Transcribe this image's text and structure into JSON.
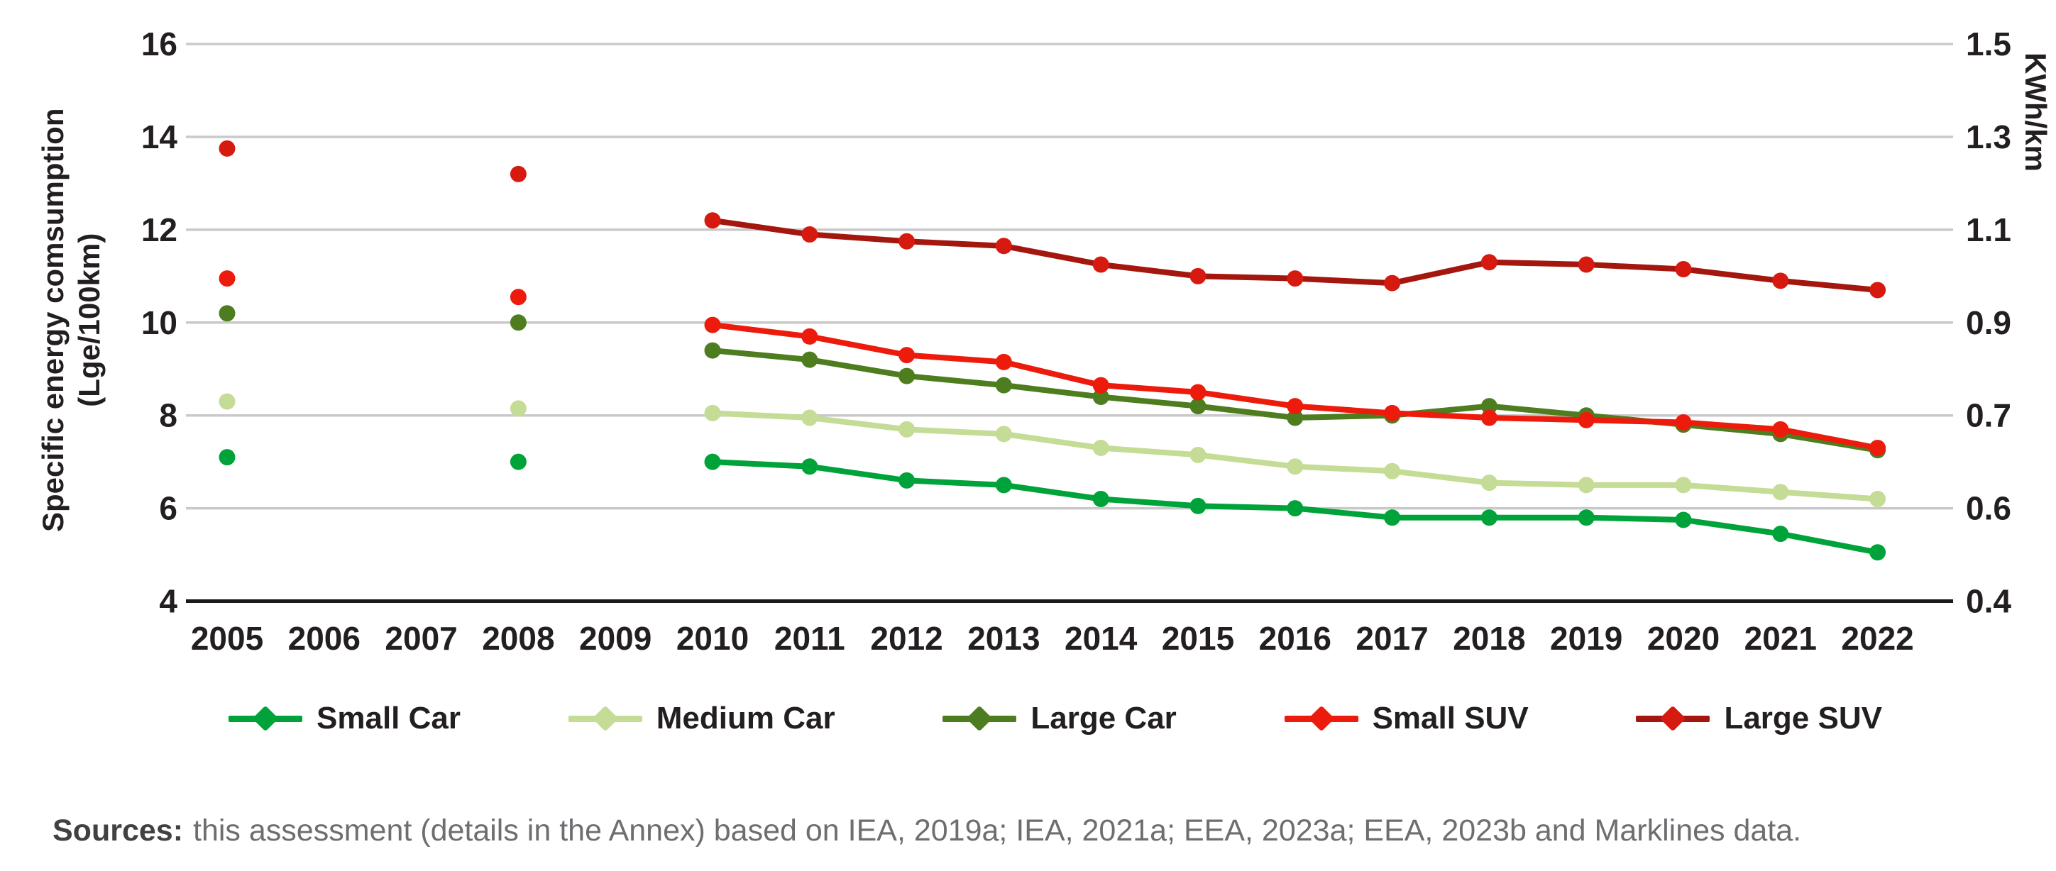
{
  "figure": {
    "y_axis_title_line1": "Specific energy comsumption",
    "y_axis_title_line2": "(Lge/100km)",
    "y2_axis_title": "KWh/km",
    "sources_label": "Sources:",
    "sources_text": "this assessment (details in the Annex) based on IEA, 2019a; IEA, 2021a; EEA, 2023a; EEA, 2023b and Marklines data."
  },
  "colors": {
    "grid": "#c9c9c9",
    "axis_bottom": "#1a1a1a",
    "tick_text": "#231f20",
    "small_car": "#00a33a",
    "medium_car": "#c5dc96",
    "large_car": "#4e7d20",
    "small_suv": "#ec1b0c",
    "large_suv_line": "#a3170e",
    "large_suv_marker": "#d61a10"
  },
  "chart_data": {
    "type": "line",
    "title": "",
    "xlabel": "",
    "ylabel": "Specific energy comsumption (Lge/100km)",
    "y2label": "KWh/km",
    "x": [
      2005,
      2006,
      2007,
      2008,
      2009,
      2010,
      2011,
      2012,
      2013,
      2014,
      2015,
      2016,
      2017,
      2018,
      2019,
      2020,
      2021,
      2022
    ],
    "x_tick_labels": [
      "2005",
      "2006",
      "2007",
      "2008",
      "2009",
      "2010",
      "2011",
      "2012",
      "2013",
      "2014",
      "2015",
      "2016",
      "2017",
      "2018",
      "2019",
      "2020",
      "2021",
      "2022"
    ],
    "ylim": [
      4,
      16.6
    ],
    "y_ticks_left": [
      "16",
      "14",
      "12",
      "10",
      "8",
      "6",
      "4"
    ],
    "y_tick_values": [
      16,
      14,
      12,
      10,
      8,
      6,
      4
    ],
    "y_ticks_right": [
      "1.5",
      "1.3",
      "1.1",
      "0.9",
      "0.7",
      "0.6",
      "0.4"
    ],
    "grid": true,
    "legend_position": "bottom",
    "note": "Points exist only for 2005, 2008 and 2010-2022; 2005 and 2008 are isolated markers without connecting lines",
    "series": [
      {
        "name": "Small Car",
        "color_key": "small_car",
        "values": [
          7.1,
          null,
          null,
          7.0,
          null,
          7.0,
          6.9,
          6.6,
          6.5,
          6.2,
          6.05,
          6.0,
          5.8,
          5.8,
          5.8,
          5.75,
          5.45,
          5.05
        ]
      },
      {
        "name": "Medium Car",
        "color_key": "medium_car",
        "values": [
          8.3,
          null,
          null,
          8.15,
          null,
          8.05,
          7.95,
          7.7,
          7.6,
          7.3,
          7.15,
          6.9,
          6.8,
          6.55,
          6.5,
          6.5,
          6.35,
          6.2
        ]
      },
      {
        "name": "Large Car",
        "color_key": "large_car",
        "values": [
          10.2,
          null,
          null,
          10.0,
          null,
          9.4,
          9.2,
          8.85,
          8.65,
          8.4,
          8.2,
          7.95,
          8.0,
          8.2,
          8.0,
          7.8,
          7.6,
          7.25
        ]
      },
      {
        "name": "Small SUV",
        "color_key": "small_suv",
        "values": [
          10.95,
          null,
          null,
          10.55,
          null,
          9.95,
          9.7,
          9.3,
          9.15,
          8.65,
          8.5,
          8.2,
          8.05,
          7.95,
          7.9,
          7.85,
          7.7,
          7.3
        ]
      },
      {
        "name": "Large SUV",
        "color_key": "large_suv_line",
        "marker_key": "large_suv_marker",
        "values": [
          13.75,
          null,
          null,
          13.2,
          null,
          12.2,
          11.9,
          11.75,
          11.65,
          11.25,
          11.0,
          10.95,
          10.85,
          11.3,
          11.25,
          11.15,
          10.9,
          10.7
        ]
      }
    ]
  }
}
